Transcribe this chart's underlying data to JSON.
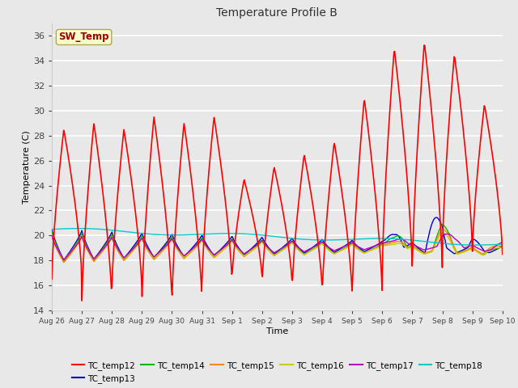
{
  "title": "Temperature Profile B",
  "xlabel": "Time",
  "ylabel": "Temperature (C)",
  "ylim": [
    14,
    37
  ],
  "background_color": "#e8e8e8",
  "plot_bg_color": "#e8e8e8",
  "sw_temp_label": "SW_Temp",
  "sw_temp_box_color": "#ffffcc",
  "sw_temp_text_color": "#990000",
  "series_colors": {
    "TC_temp12": "#ff0000",
    "TC_temp13": "#0000cc",
    "TC_temp14": "#00bb00",
    "TC_temp15": "#ff8800",
    "TC_temp16": "#cccc00",
    "TC_temp17": "#bb00bb",
    "TC_temp18": "#00cccc"
  },
  "xtick_labels": [
    "Aug 26",
    "Aug 27",
    "Aug 28",
    "Aug 29",
    "Aug 30",
    "Aug 31",
    "Sep 1",
    "Sep 2",
    "Sep 3",
    "Sep 4",
    "Sep 5",
    "Sep 6",
    "Sep 7",
    "Sep 8",
    "Sep 9",
    "Sep 10"
  ],
  "ytick_labels": [
    14,
    16,
    18,
    20,
    22,
    24,
    26,
    28,
    30,
    32,
    34,
    36
  ],
  "grid_color": "#ffffff",
  "figsize": [
    6.4,
    4.8
  ],
  "dpi": 100
}
